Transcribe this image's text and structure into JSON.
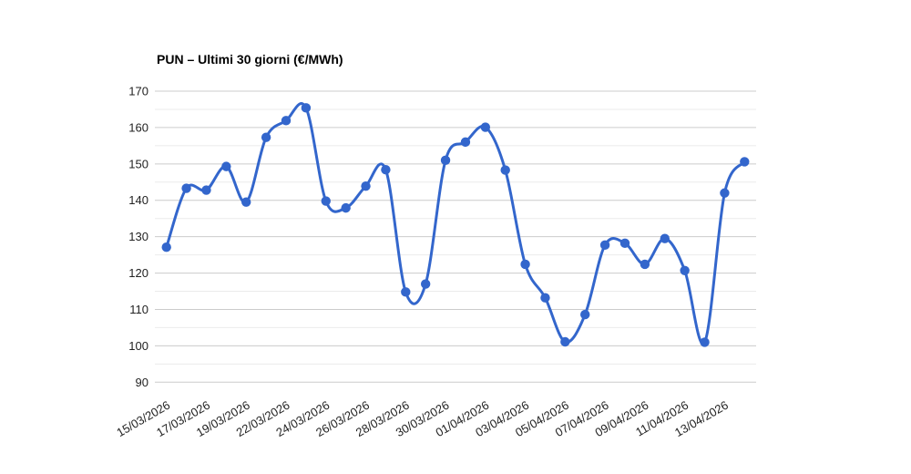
{
  "chart_data": {
    "type": "line",
    "title": "PUN – Ultimi 30 giorni (€/MWh)",
    "xlabel": "",
    "ylabel": "",
    "ylim": [
      90,
      170
    ],
    "y_ticks": [
      90,
      100,
      110,
      120,
      130,
      140,
      150,
      160,
      170
    ],
    "y_minor_step": 5,
    "grid": "on",
    "legend": "none",
    "smooth_curve": true,
    "x_tick_labels": [
      "15/03/2026",
      "17/03/2026",
      "19/03/2026",
      "22/03/2026",
      "24/03/2026",
      "26/03/2026",
      "28/03/2026",
      "30/03/2026",
      "01/04/2026",
      "03/04/2026",
      "05/04/2026",
      "07/04/2026",
      "09/04/2026",
      "11/04/2026",
      "13/04/2026"
    ],
    "x_tick_point_step": 2,
    "series": [
      {
        "name": "PUN",
        "values": [
          127.1,
          143.3,
          142.8,
          149.3,
          139.5,
          157.3,
          161.9,
          165.4,
          139.8,
          137.9,
          143.9,
          148.4,
          114.8,
          117.0,
          151.0,
          156.0,
          160.1,
          148.3,
          122.4,
          113.2,
          101.1,
          108.6,
          127.7,
          128.2,
          122.4,
          129.5,
          120.7,
          101.0,
          142.0,
          150.6
        ]
      }
    ],
    "colors": {
      "series": "#3366cc",
      "grid_major": "#cccccc",
      "grid_minor": "#ebebeb",
      "axis_text": "#222222",
      "title_text": "#000000",
      "background": "#ffffff"
    }
  }
}
